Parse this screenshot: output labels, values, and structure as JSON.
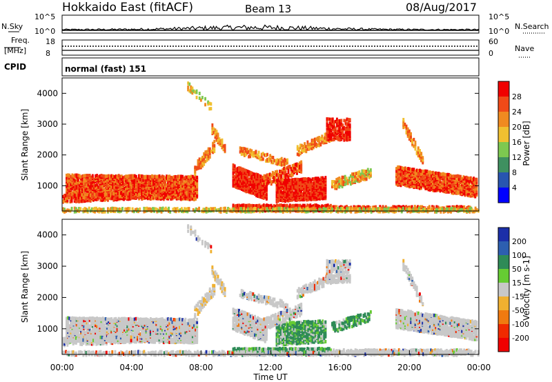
{
  "header": {
    "title": "Hokkaido East (fitACF)",
    "beam": "Beam 13",
    "date": "08/Aug/2017"
  },
  "strip": {
    "nsky_label": "N.Sky",
    "nsky_ticks": [
      "10^5",
      "10^0"
    ],
    "nsearch_label": "N.Search",
    "nsearch_ticks": [
      "10^5",
      "10^0"
    ],
    "freq_label_1": "Freq.",
    "freq_label_2": "[MHz]",
    "freq_ticks": [
      "18",
      "8"
    ],
    "nave_label": "Nave",
    "nave_ticks": [
      "60",
      "0"
    ],
    "cpid_label": "CPID",
    "cpid_value": "normal (fast) 151"
  },
  "chart_data": [
    {
      "type": "heatmap",
      "title": "",
      "xlabel": "",
      "ylabel": "Slant Range [km]",
      "x_range_hours": [
        0,
        24
      ],
      "y_range_km": [
        180,
        4500
      ],
      "y_ticks": [
        1000,
        2000,
        3000,
        4000
      ],
      "colorbar_label": "Power [dB]",
      "colorbar_ticks": [
        4,
        8,
        12,
        16,
        20,
        24,
        28
      ],
      "colorbar_range": [
        0,
        32
      ],
      "colors": [
        "#0000ff",
        "#2855b0",
        "#3f9060",
        "#7dc850",
        "#f0c030",
        "#f08a20",
        "#f04a18",
        "#f00000"
      ]
    },
    {
      "type": "heatmap",
      "title": "",
      "xlabel": "Time UT",
      "ylabel": "Slant Range [km]",
      "x_range_hours": [
        0,
        24
      ],
      "x_tick_labels": [
        "00:00",
        "04:00",
        "08:00",
        "12:00",
        "16:00",
        "20:00",
        "00:00"
      ],
      "y_range_km": [
        180,
        4500
      ],
      "y_ticks": [
        1000,
        2000,
        3000,
        4000
      ],
      "colorbar_label": "Velocity [m s-1]",
      "colorbar_ticks": [
        200,
        100,
        50,
        15,
        -15,
        -50,
        -100,
        -200
      ],
      "ground_scatter_color": "#c0c0c0",
      "colors": [
        "#1c2fa8",
        "#2d5fb0",
        "#2e8b57",
        "#66cc33",
        "#c8c8c8",
        "#f0b030",
        "#f07a10",
        "#f02a00",
        "#f00000"
      ]
    }
  ]
}
